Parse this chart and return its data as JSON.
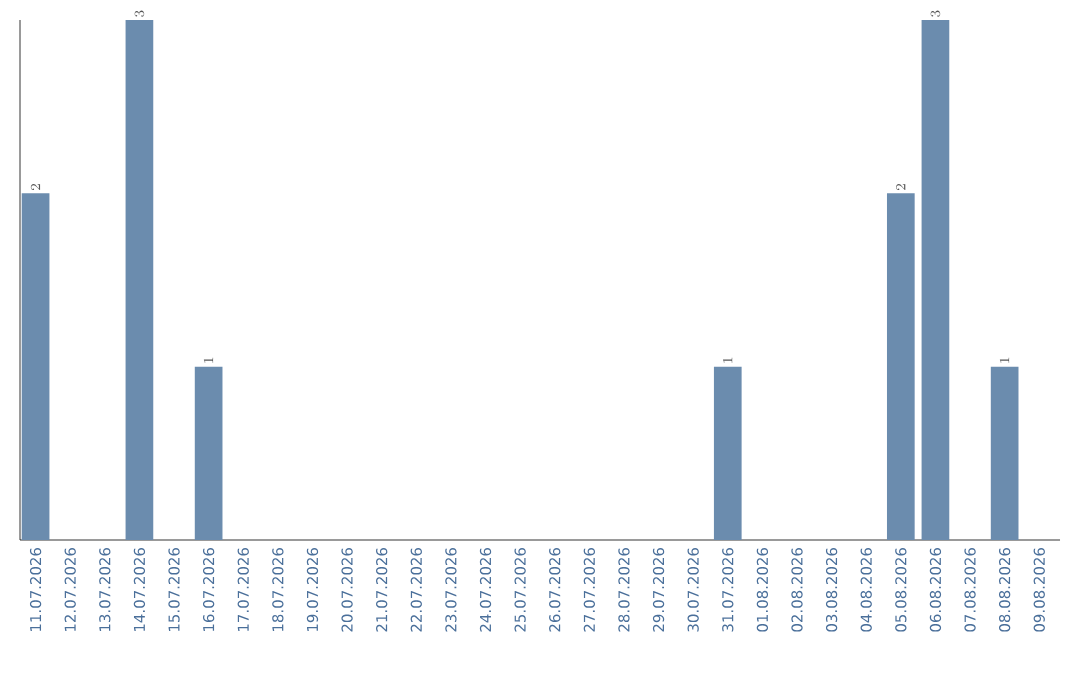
{
  "chart_data": {
    "type": "bar",
    "categories": [
      "11.07.2026",
      "12.07.2026",
      "13.07.2026",
      "14.07.2026",
      "15.07.2026",
      "16.07.2026",
      "17.07.2026",
      "18.07.2026",
      "19.07.2026",
      "20.07.2026",
      "21.07.2026",
      "22.07.2026",
      "23.07.2026",
      "24.07.2026",
      "25.07.2026",
      "26.07.2026",
      "27.07.2026",
      "28.07.2026",
      "29.07.2026",
      "30.07.2026",
      "31.07.2026",
      "01.08.2026",
      "02.08.2026",
      "03.08.2026",
      "04.08.2026",
      "05.08.2026",
      "06.08.2026",
      "07.08.2026",
      "08.08.2026",
      "09.08.2026"
    ],
    "values": [
      2,
      null,
      null,
      3,
      null,
      1,
      null,
      null,
      null,
      null,
      null,
      null,
      null,
      null,
      null,
      null,
      null,
      null,
      null,
      null,
      1,
      null,
      null,
      null,
      null,
      2,
      3,
      null,
      1,
      null
    ],
    "color": "#6b8cae",
    "ylim": [
      0,
      3
    ],
    "data_labels": true,
    "tick_labels": "x"
  }
}
